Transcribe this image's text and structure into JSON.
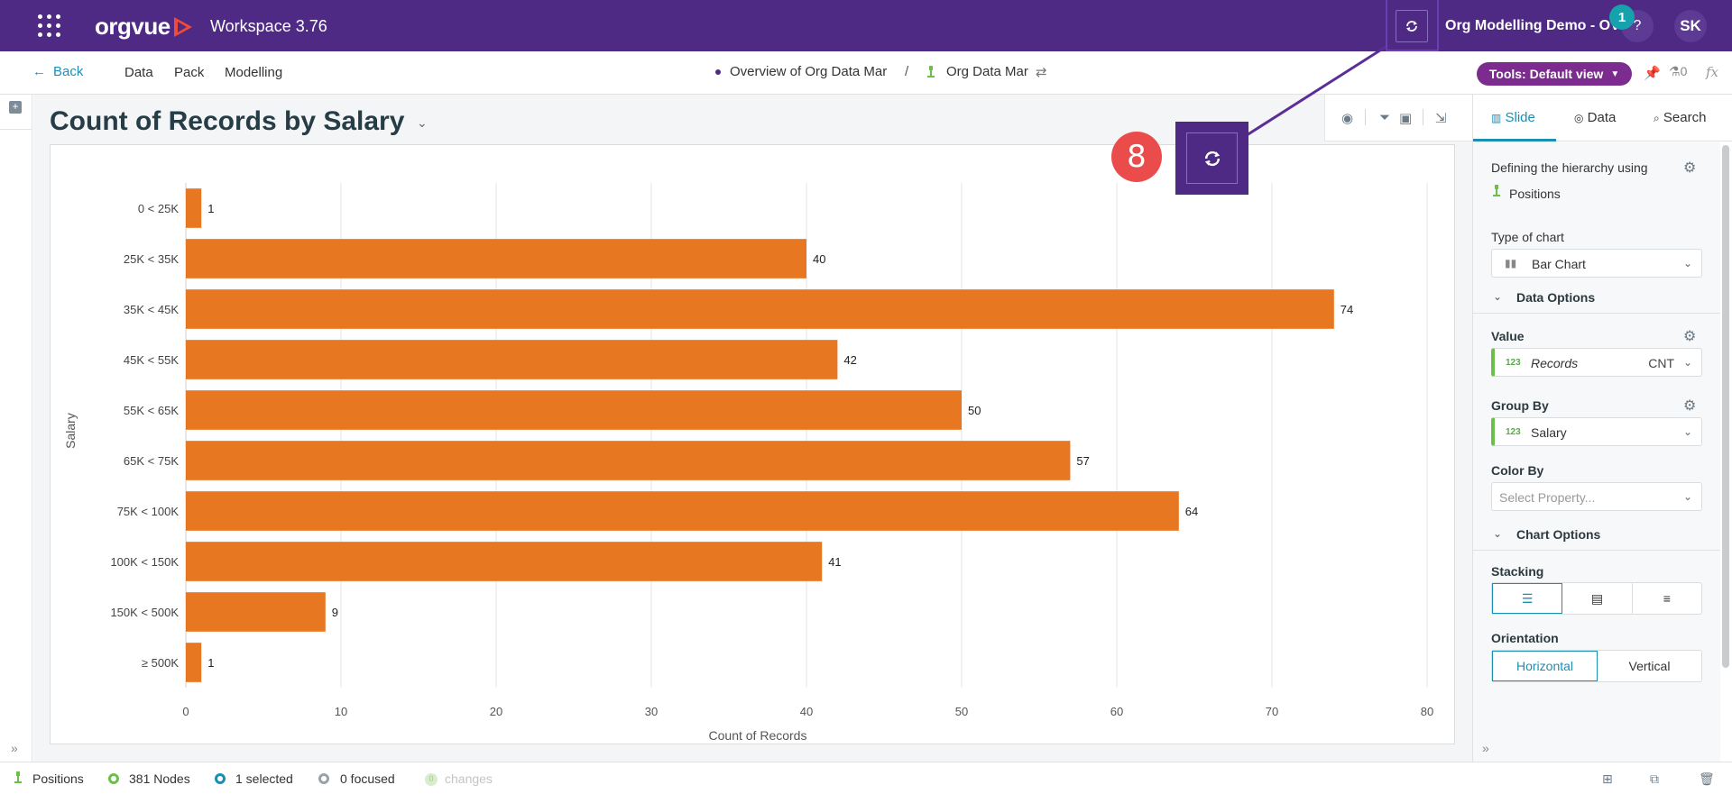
{
  "topbar": {
    "brand": "orgvue",
    "workspace": "Workspace  3.76",
    "org_title": "Org Modelling Demo - OV",
    "notification_count": "1",
    "help_label": "?",
    "avatar_initials": "SK",
    "bg_color": "#4e2a84"
  },
  "subbar": {
    "back_label": "Back",
    "nav": [
      "Data",
      "Pack",
      "Modelling"
    ],
    "breadcrumb_1": "Overview of Org Data Mar",
    "breadcrumb_sep": "/",
    "breadcrumb_2": "Org Data Mar",
    "tools_label": "Tools: Default view",
    "flask_count": "0",
    "fx_label": "fx"
  },
  "main": {
    "title": "Count of Records by Salary",
    "step_badge": "8"
  },
  "chart_data": {
    "type": "bar",
    "orientation": "horizontal",
    "title": "Count of Records by Salary",
    "xlabel": "Count of Records",
    "ylabel": "Salary",
    "categories": [
      "0 < 25K",
      "25K < 35K",
      "35K < 45K",
      "45K < 55K",
      "55K < 65K",
      "65K < 75K",
      "75K < 100K",
      "100K < 150K",
      "150K < 500K",
      "≥ 500K"
    ],
    "values": [
      1,
      40,
      74,
      42,
      50,
      57,
      64,
      41,
      9,
      1
    ],
    "xlim": [
      0,
      80
    ],
    "xticks": [
      0,
      10,
      20,
      30,
      40,
      50,
      60,
      70,
      80
    ],
    "bar_color": "#e87722",
    "grid": true
  },
  "rpanel": {
    "tabs": [
      "Slide",
      "Data",
      "Search"
    ],
    "hierarchy_label": "Defining the hierarchy using",
    "hierarchy_value": "Positions",
    "type_of_chart_label": "Type of chart",
    "type_of_chart_value": "Bar Chart",
    "data_options_label": "Data Options",
    "value_label": "Value",
    "value_field": "Records",
    "value_field_prefix": "123",
    "value_agg": "CNT",
    "group_by_label": "Group By",
    "group_by_field": "Salary",
    "group_by_prefix": "123",
    "color_by_label": "Color By",
    "color_by_placeholder": "Select Property...",
    "chart_options_label": "Chart Options",
    "stacking_label": "Stacking",
    "orientation_label": "Orientation",
    "orientation_options": [
      "Horizontal",
      "Vertical"
    ],
    "accent_color": "#1b8fb2"
  },
  "bottombar": {
    "positions": "Positions",
    "nodes": "381 Nodes",
    "selected": "1 selected",
    "focused": "0 focused",
    "changes_count": "0",
    "changes": "changes"
  }
}
